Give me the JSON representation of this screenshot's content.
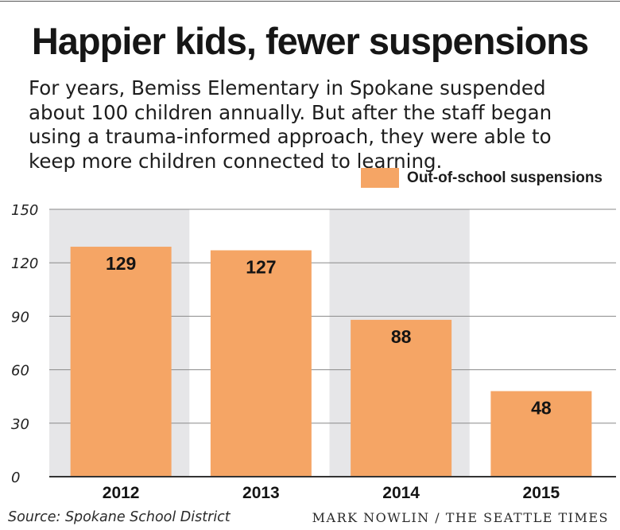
{
  "title": "Happier kids, fewer suspensions",
  "subtitle": "For years, Bemiss Elementary in Spokane suspended about 100 children annually. But after the staff began using a trauma-informed approach, they were able to keep more children connected to learning.",
  "source": "Source: Spokane School District",
  "credit": "MARK NOWLIN / THE SEATTLE TIMES",
  "colors": {
    "bar": "#f5a565",
    "band": "#e6e6e8",
    "axis": "#333333"
  },
  "chart_data": {
    "type": "bar",
    "categories": [
      "2012",
      "2013",
      "2014",
      "2015"
    ],
    "series": [
      {
        "name": "Out-of-school suspensions",
        "values": [
          129,
          127,
          88,
          48
        ]
      }
    ],
    "ylim": [
      0,
      150
    ],
    "yticks": [
      0,
      30,
      60,
      90,
      120,
      150
    ],
    "xlabel": "",
    "ylabel": "",
    "grid": true,
    "legend": "top-right",
    "data_labels": true
  }
}
